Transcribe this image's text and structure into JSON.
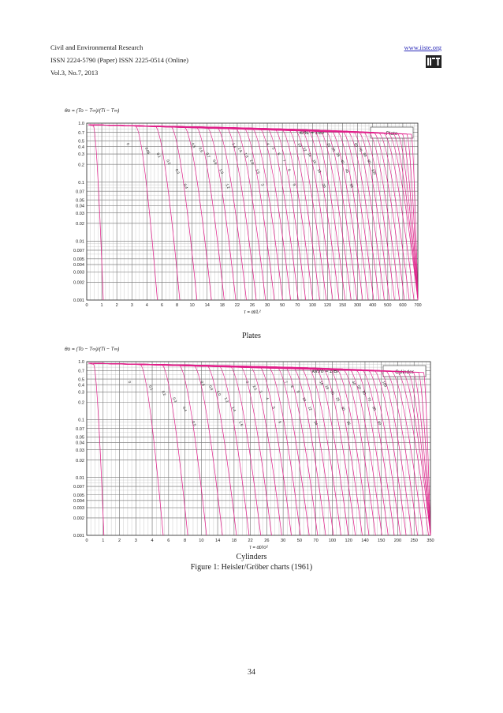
{
  "header": {
    "journal": "Civil and Environmental Research",
    "issn": "ISSN 2224-5790 (Paper) ISSN 2225-0514 (Online)",
    "volume": "Vol.3, No.7, 2013",
    "url": "www.iiste.org",
    "logo_text": "IISTE"
  },
  "captions": {
    "plates": "Plates",
    "cylinders": "Cylinders",
    "figure": "Figure 1: Heisler/Gröber charts (1961)"
  },
  "page_number": "34",
  "colors": {
    "curve": "#e0208a",
    "grid": "#777777",
    "text": "#1a1a1a",
    "link": "#2a2ab8"
  },
  "chart_data": [
    {
      "type": "line",
      "title": "Plate",
      "ylabel": "θo = (To − T∞)/(Ti − T∞)",
      "xlabel": "τ = αt/L²",
      "param_label": "k/hL = 1/Bi",
      "y_scale": "log",
      "ylim": [
        0.001,
        1.0
      ],
      "y_ticks": [
        "1.0",
        "0.7",
        "0.5",
        "0.4",
        "0.3",
        "0.2",
        "0.1",
        "0.07",
        "0.05",
        "0.04",
        "0.03",
        "0.02",
        "0.01",
        "0.007",
        "0.005",
        "0.004",
        "0.003",
        "0.002",
        "0.001"
      ],
      "x_ticks": [
        "0",
        "1",
        "2",
        "3",
        "4",
        "6",
        "8",
        "10",
        "14",
        "18",
        "22",
        "26",
        "30",
        "50",
        "70",
        "100",
        "120",
        "150",
        "300",
        "400",
        "500",
        "600",
        "700"
      ],
      "param_values": [
        "0",
        "0.05",
        "0.1",
        "0.2",
        "0.3",
        "0.4",
        "0.5",
        "0.6",
        "0.7",
        "0.8",
        "1.0",
        "1.2",
        "1.4",
        "1.6",
        "1.8",
        "2.0",
        "2.5",
        "3",
        "4",
        "5",
        "6",
        "7",
        "8",
        "9",
        "10",
        "12",
        "14",
        "16",
        "18",
        "20",
        "25",
        "30",
        "35",
        "40",
        "45",
        "50",
        "60",
        "70",
        "80",
        "90",
        "100"
      ],
      "series_count": 40
    },
    {
      "type": "line",
      "title": "Cylinder",
      "ylabel": "θo = (To − T∞)/(Ti − T∞)",
      "xlabel": "τ = αt/ro²",
      "param_label": "k/hro = 1/Bi",
      "y_scale": "log",
      "ylim": [
        0.001,
        1.0
      ],
      "y_ticks": [
        "1.0",
        "0.7",
        "0.5",
        "0.4",
        "0.3",
        "0.2",
        "0.1",
        "0.07",
        "0.05",
        "0.04",
        "0.03",
        "0.02",
        "0.01",
        "0.007",
        "0.005",
        "0.004",
        "0.003",
        "0.002",
        "0.001"
      ],
      "x_ticks": [
        "0",
        "1",
        "2",
        "3",
        "4",
        "6",
        "8",
        "10",
        "14",
        "18",
        "22",
        "26",
        "30",
        "50",
        "70",
        "100",
        "120",
        "140",
        "150",
        "200",
        "250",
        "350"
      ],
      "param_values": [
        "0",
        "0.1",
        "0.2",
        "0.3",
        "0.4",
        "0.5",
        "0.6",
        "0.8",
        "1.0",
        "1.2",
        "1.4",
        "1.6",
        "2",
        "2.5",
        "3",
        "4",
        "5",
        "6",
        "7",
        "8",
        "9",
        "10",
        "12",
        "14",
        "16",
        "18",
        "20",
        "25",
        "30",
        "35",
        "40",
        "50",
        "60",
        "70",
        "80",
        "90",
        "100"
      ],
      "series_count": 36
    }
  ]
}
